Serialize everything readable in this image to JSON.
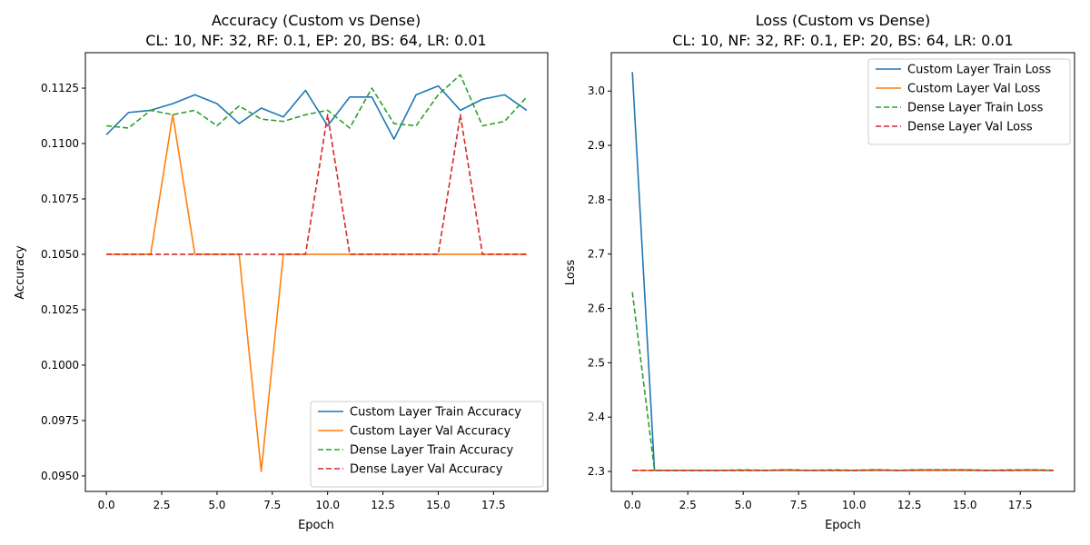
{
  "chart_data": [
    {
      "type": "line",
      "title": "Accuracy (Custom vs Dense)",
      "subtitle": "CL: 10, NF: 32, RF: 0.1, EP: 20, BS: 64, LR: 0.01",
      "xlabel": "Epoch",
      "ylabel": "Accuracy",
      "xlim": [
        -0.95,
        19.95
      ],
      "ylim": [
        0.0943,
        0.1141
      ],
      "xticks": [
        0.0,
        2.5,
        5.0,
        7.5,
        10.0,
        12.5,
        15.0,
        17.5
      ],
      "xtick_labels": [
        "0.0",
        "2.5",
        "5.0",
        "7.5",
        "10.0",
        "12.5",
        "15.0",
        "17.5"
      ],
      "yticks": [
        0.095,
        0.0975,
        0.1,
        0.1025,
        0.105,
        0.1075,
        0.11,
        0.1125
      ],
      "ytick_labels": [
        "0.0950",
        "0.0975",
        "0.1000",
        "0.1025",
        "0.1050",
        "0.1075",
        "0.1100",
        "0.1125"
      ],
      "grid": false,
      "legend_position": "lower-right",
      "x": [
        0,
        1,
        2,
        3,
        4,
        5,
        6,
        7,
        8,
        9,
        10,
        11,
        12,
        13,
        14,
        15,
        16,
        17,
        18,
        19
      ],
      "series": [
        {
          "name": "Custom Layer Train Accuracy",
          "color": "#1f77b4",
          "dashed": false,
          "values": [
            0.1104,
            0.1114,
            0.1115,
            0.1118,
            0.1122,
            0.1118,
            0.1109,
            0.1116,
            0.1112,
            0.1124,
            0.1108,
            0.1121,
            0.1121,
            0.1102,
            0.1122,
            0.1126,
            0.1115,
            0.112,
            0.1122,
            0.1115
          ]
        },
        {
          "name": "Custom Layer Val Accuracy",
          "color": "#ff7f0e",
          "dashed": false,
          "values": [
            0.105,
            0.105,
            0.105,
            0.1113,
            0.105,
            0.105,
            0.105,
            0.0952,
            0.105,
            0.105,
            0.105,
            0.105,
            0.105,
            0.105,
            0.105,
            0.105,
            0.105,
            0.105,
            0.105,
            0.105
          ]
        },
        {
          "name": "Dense Layer Train Accuracy",
          "color": "#2ca02c",
          "dashed": true,
          "values": [
            0.1108,
            0.1107,
            0.1115,
            0.1113,
            0.1115,
            0.1108,
            0.1117,
            0.1111,
            0.111,
            0.1113,
            0.1115,
            0.1107,
            0.1125,
            0.1109,
            0.1108,
            0.1122,
            0.1131,
            0.1108,
            0.111,
            0.1121
          ]
        },
        {
          "name": "Dense Layer Val Accuracy",
          "color": "#d62728",
          "dashed": true,
          "values": [
            0.105,
            0.105,
            0.105,
            0.105,
            0.105,
            0.105,
            0.105,
            0.105,
            0.105,
            0.105,
            0.1113,
            0.105,
            0.105,
            0.105,
            0.105,
            0.105,
            0.1113,
            0.105,
            0.105,
            0.105
          ]
        }
      ]
    },
    {
      "type": "line",
      "title": "Loss (Custom vs Dense)",
      "subtitle": "CL: 10, NF: 32, RF: 0.1, EP: 20, BS: 64, LR: 0.01",
      "xlabel": "Epoch",
      "ylabel": "Loss",
      "xlim": [
        -0.95,
        19.95
      ],
      "ylim": [
        2.2633,
        3.0706
      ],
      "xticks": [
        0.0,
        2.5,
        5.0,
        7.5,
        10.0,
        12.5,
        15.0,
        17.5
      ],
      "xtick_labels": [
        "0.0",
        "2.5",
        "5.0",
        "7.5",
        "10.0",
        "12.5",
        "15.0",
        "17.5"
      ],
      "yticks": [
        2.3,
        2.4,
        2.5,
        2.6,
        2.7,
        2.8,
        2.9,
        3.0
      ],
      "ytick_labels": [
        "2.3",
        "2.4",
        "2.5",
        "2.6",
        "2.7",
        "2.8",
        "2.9",
        "3.0"
      ],
      "grid": false,
      "legend_position": "upper-right",
      "x": [
        0,
        1,
        2,
        3,
        4,
        5,
        6,
        7,
        8,
        9,
        10,
        11,
        12,
        13,
        14,
        15,
        16,
        17,
        18,
        19
      ],
      "series": [
        {
          "name": "Custom Layer Train Loss",
          "color": "#1f77b4",
          "dashed": false,
          "values": [
            3.035,
            2.302,
            2.302,
            2.302,
            2.302,
            2.302,
            2.302,
            2.302,
            2.302,
            2.302,
            2.302,
            2.302,
            2.302,
            2.302,
            2.302,
            2.302,
            2.302,
            2.302,
            2.302,
            2.302
          ]
        },
        {
          "name": "Custom Layer Val Loss",
          "color": "#ff7f0e",
          "dashed": false,
          "values": [
            2.302,
            2.302,
            2.302,
            2.302,
            2.302,
            2.302,
            2.302,
            2.302,
            2.302,
            2.302,
            2.302,
            2.302,
            2.302,
            2.302,
            2.302,
            2.302,
            2.302,
            2.302,
            2.302,
            2.302
          ]
        },
        {
          "name": "Dense Layer Train Loss",
          "color": "#2ca02c",
          "dashed": true,
          "values": [
            2.63,
            2.302,
            2.302,
            2.302,
            2.302,
            2.303,
            2.302,
            2.303,
            2.302,
            2.303,
            2.302,
            2.303,
            2.302,
            2.303,
            2.303,
            2.303,
            2.302,
            2.303,
            2.303,
            2.302
          ]
        },
        {
          "name": "Dense Layer Val Loss",
          "color": "#d62728",
          "dashed": true,
          "values": [
            2.302,
            2.302,
            2.302,
            2.302,
            2.302,
            2.302,
            2.302,
            2.303,
            2.302,
            2.302,
            2.302,
            2.303,
            2.302,
            2.303,
            2.303,
            2.303,
            2.302,
            2.302,
            2.303,
            2.302
          ]
        }
      ]
    }
  ]
}
